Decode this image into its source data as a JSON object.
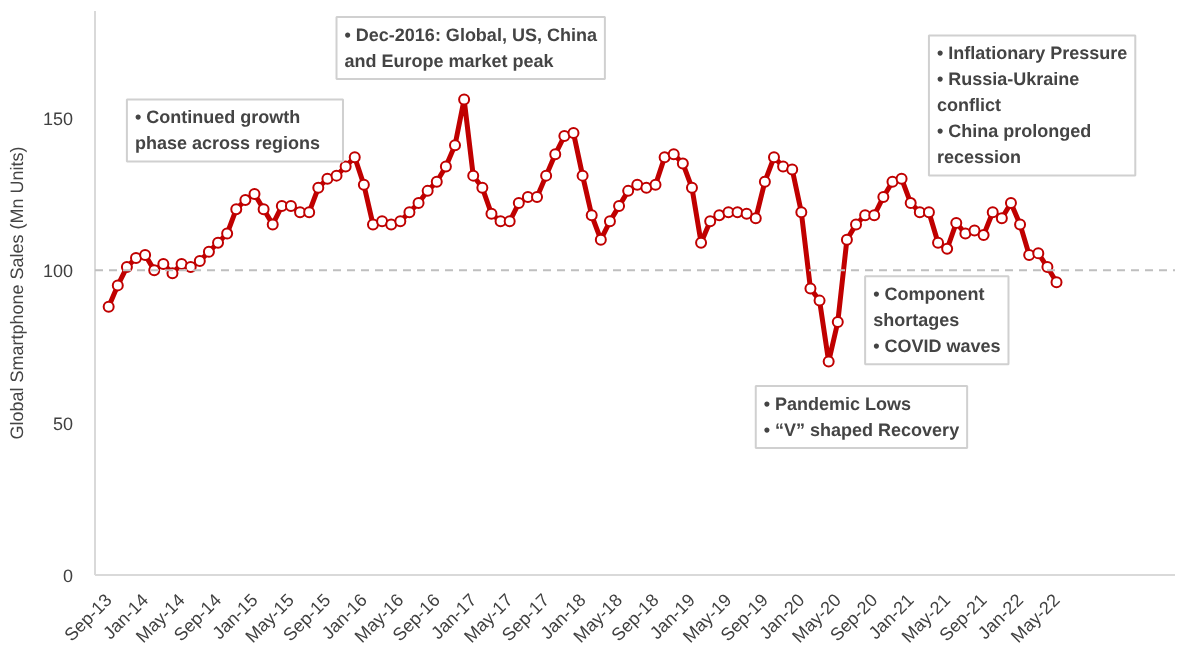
{
  "chart_data": {
    "type": "line",
    "ylabel": "Global Smartphone Sales (Mn Units)",
    "categories": [
      "Sep-13",
      null,
      null,
      null,
      "Jan-14",
      null,
      null,
      null,
      "May-14",
      null,
      null,
      null,
      "Sep-14",
      null,
      null,
      null,
      "Jan-15",
      null,
      null,
      null,
      "May-15",
      null,
      null,
      null,
      "Sep-15",
      null,
      null,
      null,
      "Jan-16",
      null,
      null,
      null,
      "May-16",
      null,
      null,
      null,
      "Sep-16",
      null,
      null,
      null,
      "Jan-17",
      null,
      null,
      null,
      "May-17",
      null,
      null,
      null,
      "Sep-17",
      null,
      null,
      null,
      "Jan-18",
      null,
      null,
      null,
      "May-18",
      null,
      null,
      null,
      "Sep-18",
      null,
      null,
      null,
      "Jan-19",
      null,
      null,
      null,
      "May-19",
      null,
      null,
      null,
      "Sep-19",
      null,
      null,
      null,
      "Jan-20",
      null,
      null,
      null,
      "May-20",
      null,
      null,
      null,
      "Sep-20",
      null,
      null,
      null,
      "Jan-21",
      null,
      null,
      null,
      "May-21",
      null,
      null,
      null,
      "Sep-21",
      null,
      null,
      null,
      "Jan-22",
      null,
      null,
      null,
      "May-22"
    ],
    "series": [
      {
        "color": "#c00000",
        "values": [
          88,
          95,
          101,
          104,
          105,
          100,
          102,
          99,
          102,
          101,
          103,
          106,
          109,
          112,
          120,
          123,
          125,
          120,
          115,
          121,
          121,
          119,
          119,
          127,
          130,
          131,
          134,
          137,
          128,
          115,
          116,
          115,
          116,
          119,
          122,
          126,
          129,
          134,
          141,
          156,
          131,
          127,
          118.5,
          116,
          116,
          122,
          124,
          124,
          131,
          138,
          144,
          145,
          131,
          118,
          110,
          116,
          121,
          126,
          128,
          127,
          128,
          137,
          138,
          135,
          127,
          109,
          116,
          118,
          119,
          119,
          118.5,
          117,
          129,
          137,
          134,
          133,
          119,
          94,
          90,
          70,
          83,
          110,
          115,
          118,
          118,
          124,
          129,
          130,
          122,
          119,
          119,
          109,
          107,
          115.5,
          112,
          113,
          111.5,
          119,
          117,
          122,
          115,
          105,
          105.5,
          101,
          96
        ]
      }
    ],
    "ylim": [
      0,
      185
    ],
    "yticks": [
      0,
      50,
      100,
      150
    ],
    "grid": false,
    "marker": "circle",
    "line_style": "solid",
    "ref_lines": [
      {
        "axis": "y",
        "value": 100,
        "color": "#bfbfbf",
        "line_style": "dashed"
      }
    ],
    "annotations": [
      "• Continued growth\n   phase across regions",
      "• Dec-2016: Global, US, China\n   and Europe market peak",
      "• Inflationary Pressure\n• Russia-Ukraine\n   conflict\n• China prolonged\n   recession",
      "• Component\n   shortages\n• COVID waves",
      "• Pandemic Lows\n• “V” shaped Recovery"
    ]
  }
}
